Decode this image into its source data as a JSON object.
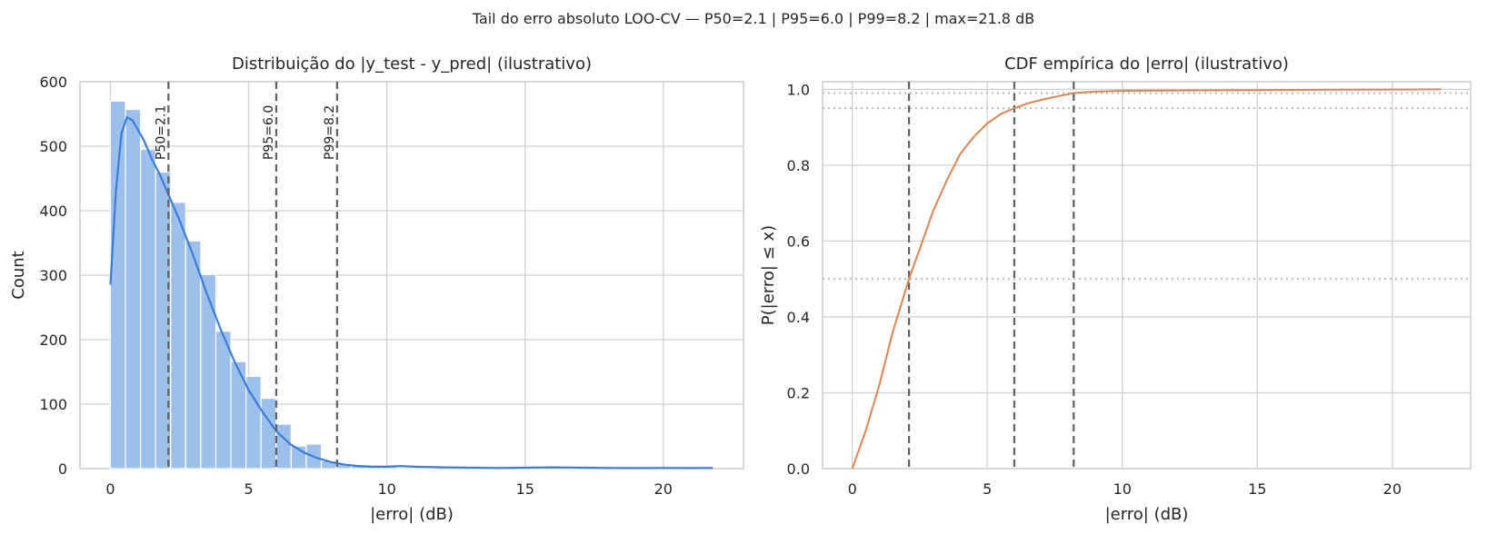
{
  "figure": {
    "suptitle": "Tail do erro absoluto LOO-CV — P50=2.1 | P95=6.0 | P99=8.2 | max=21.8 dB"
  },
  "colors": {
    "hist_bar": "#9dbfec",
    "kde_line": "#3a7dd8",
    "cdf_line": "#dd8452",
    "vline": "#606060",
    "hline": "#b8b8b8",
    "grid": "#d0d0d0",
    "axes_frame": "#cccccc"
  },
  "chart_data": [
    {
      "type": "bar",
      "title": "Distribuição do |y_test - y_pred| (ilustrativo)",
      "xlabel": "|erro| (dB)",
      "ylabel": "Count",
      "xlim": [
        -1.1,
        22.9
      ],
      "ylim": [
        0,
        600
      ],
      "xticks": [
        0,
        5,
        10,
        15,
        20
      ],
      "yticks": [
        0,
        100,
        200,
        300,
        400,
        500,
        600
      ],
      "grid": true,
      "bin_width": 0.545,
      "bins": [
        {
          "x0": 0.0,
          "count": 570
        },
        {
          "x0": 0.545,
          "count": 557
        },
        {
          "x0": 1.09,
          "count": 495
        },
        {
          "x0": 1.635,
          "count": 460
        },
        {
          "x0": 2.18,
          "count": 413
        },
        {
          "x0": 2.725,
          "count": 353
        },
        {
          "x0": 3.27,
          "count": 301
        },
        {
          "x0": 3.815,
          "count": 213
        },
        {
          "x0": 4.36,
          "count": 166
        },
        {
          "x0": 4.905,
          "count": 143
        },
        {
          "x0": 5.45,
          "count": 109
        },
        {
          "x0": 5.995,
          "count": 69
        },
        {
          "x0": 6.54,
          "count": 35
        },
        {
          "x0": 7.085,
          "count": 38
        },
        {
          "x0": 7.63,
          "count": 12
        },
        {
          "x0": 8.175,
          "count": 7
        },
        {
          "x0": 8.72,
          "count": 5
        },
        {
          "x0": 9.265,
          "count": 4
        },
        {
          "x0": 9.81,
          "count": 3
        },
        {
          "x0": 10.355,
          "count": 2
        },
        {
          "x0": 10.9,
          "count": 2
        },
        {
          "x0": 11.445,
          "count": 1
        },
        {
          "x0": 11.99,
          "count": 1
        },
        {
          "x0": 12.535,
          "count": 1
        },
        {
          "x0": 13.08,
          "count": 1
        },
        {
          "x0": 13.625,
          "count": 1
        },
        {
          "x0": 14.17,
          "count": 1
        },
        {
          "x0": 14.715,
          "count": 1
        },
        {
          "x0": 15.26,
          "count": 1
        },
        {
          "x0": 15.805,
          "count": 2
        },
        {
          "x0": 16.35,
          "count": 1
        },
        {
          "x0": 16.895,
          "count": 1
        },
        {
          "x0": 17.44,
          "count": 1
        },
        {
          "x0": 17.985,
          "count": 1
        },
        {
          "x0": 18.53,
          "count": 0
        },
        {
          "x0": 19.075,
          "count": 0
        },
        {
          "x0": 19.62,
          "count": 1
        },
        {
          "x0": 20.165,
          "count": 1
        },
        {
          "x0": 20.71,
          "count": 0
        },
        {
          "x0": 21.255,
          "count": 1
        }
      ],
      "kde": {
        "x": [
          0,
          0.2,
          0.4,
          0.6,
          0.8,
          1.0,
          1.2,
          1.5,
          1.8,
          2.1,
          2.5,
          3.0,
          3.5,
          4.0,
          4.5,
          5.0,
          5.5,
          6.0,
          6.5,
          7.0,
          7.5,
          8.0,
          8.5,
          9.0,
          9.5,
          10.0,
          10.5,
          11.0,
          12.0,
          14.0,
          16.0,
          18.0,
          20.0,
          21.8
        ],
        "y": [
          285,
          430,
          520,
          545,
          540,
          525,
          510,
          480,
          455,
          425,
          385,
          330,
          270,
          215,
          165,
          122,
          88,
          58,
          38,
          25,
          16,
          10,
          6,
          4,
          3,
          3,
          4,
          3,
          2,
          1,
          2,
          1,
          1,
          1
        ]
      },
      "vlines": [
        {
          "x": 2.1,
          "label": "P50=2.1"
        },
        {
          "x": 6.0,
          "label": "P95=6.0"
        },
        {
          "x": 8.2,
          "label": "P99=8.2"
        }
      ]
    },
    {
      "type": "line",
      "title": "CDF empírica do |erro| (ilustrativo)",
      "xlabel": "|erro| (dB)",
      "ylabel": "P(|erro| ≤ x)",
      "xlim": [
        -1.1,
        22.9
      ],
      "ylim": [
        0,
        1.02
      ],
      "xticks": [
        0,
        5,
        10,
        15,
        20
      ],
      "yticks": [
        0.0,
        0.2,
        0.4,
        0.6,
        0.8,
        1.0
      ],
      "ytick_labels": [
        "0.0",
        "0.2",
        "0.4",
        "0.6",
        "0.8",
        "1.0"
      ],
      "grid": true,
      "series": [
        {
          "x": [
            0,
            0.25,
            0.5,
            1.0,
            1.5,
            2.1,
            2.5,
            3.0,
            3.5,
            4.0,
            4.5,
            5.0,
            5.5,
            6.0,
            6.5,
            7.0,
            7.5,
            8.2,
            9.0,
            10.0,
            12.0,
            15.0,
            18.0,
            21.8
          ],
          "y": [
            0,
            0.05,
            0.1,
            0.22,
            0.36,
            0.5,
            0.58,
            0.68,
            0.76,
            0.83,
            0.875,
            0.91,
            0.935,
            0.95,
            0.963,
            0.972,
            0.98,
            0.99,
            0.994,
            0.996,
            0.997,
            0.998,
            0.999,
            1.0
          ]
        }
      ],
      "vlines": [
        {
          "x": 2.1
        },
        {
          "x": 6.0
        },
        {
          "x": 8.2
        }
      ],
      "hlines": [
        {
          "y": 0.5
        },
        {
          "y": 0.95
        },
        {
          "y": 0.99
        }
      ]
    }
  ]
}
